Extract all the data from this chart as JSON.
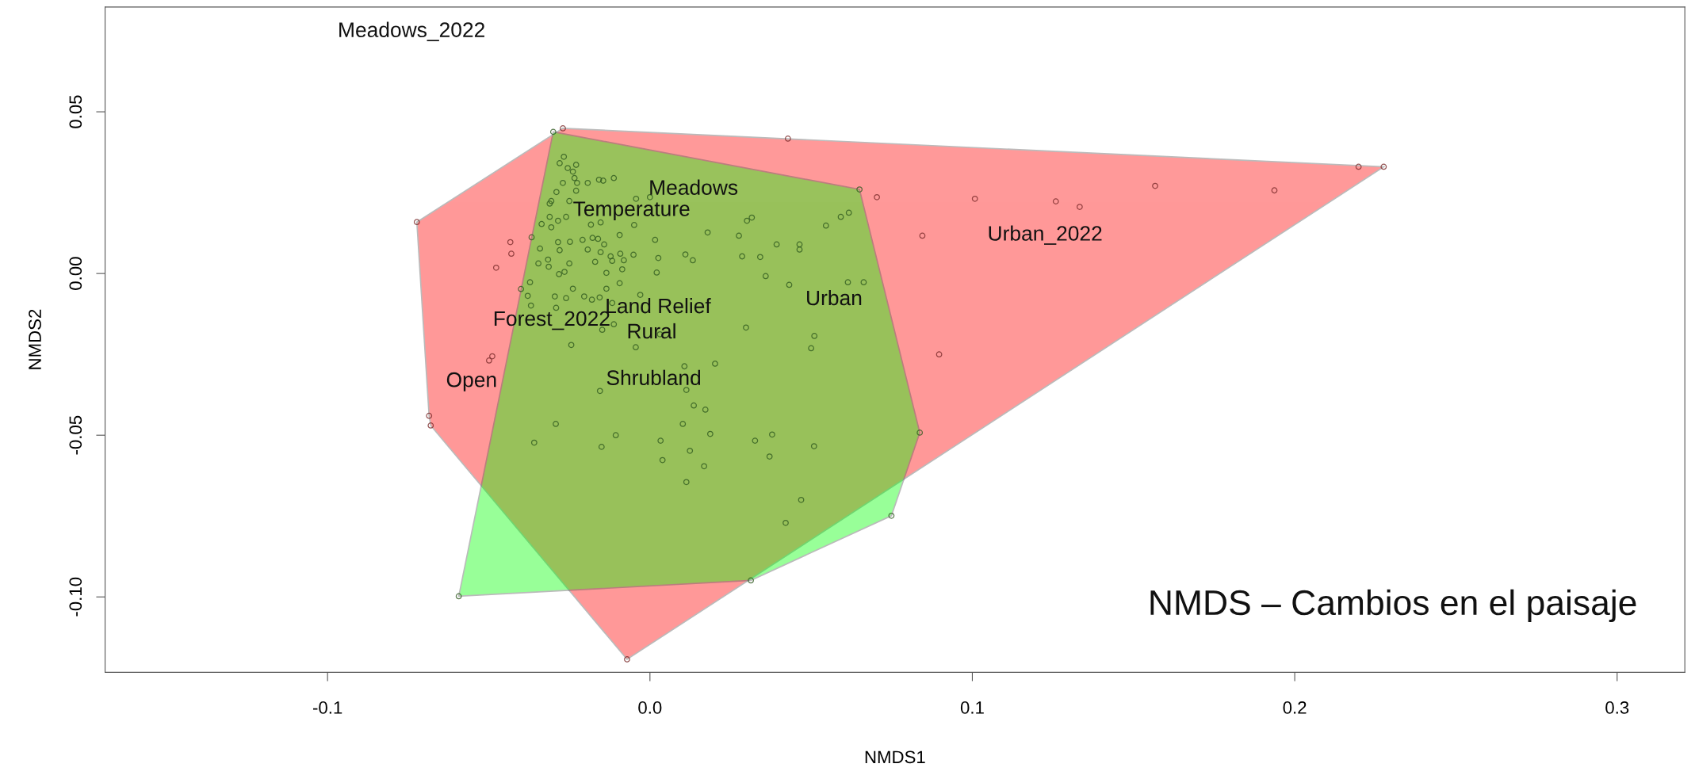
{
  "chart_data": {
    "type": "scatter",
    "xlabel": "NMDS1",
    "ylabel": "NMDS2",
    "xlim": [
      -0.169,
      0.321
    ],
    "ylim": [
      -0.1233,
      0.0824
    ],
    "xticks": [
      -0.1,
      {
        "value": 0,
        "label": "0.0"
      },
      0.1,
      0.2,
      0.3
    ],
    "yticks": [
      {
        "value": -0.1,
        "label": "-0.10"
      },
      -0.05,
      {
        "value": 0,
        "label": "0.00"
      },
      0.05
    ],
    "grid": false,
    "legend": false,
    "series": [
      {
        "type": "area",
        "color": "#ff0000",
        "x": [
          -0.0723,
          -0.027,
          0.2276,
          -0.0071,
          -0.068,
          -0.0685
        ],
        "values": [
          0.0159,
          0.0449,
          0.033,
          -0.1193,
          -0.047,
          -0.044
        ]
      },
      {
        "type": "area",
        "color": "#00ff00",
        "x": [
          -0.03,
          0.065,
          0.0837,
          0.0749,
          0.0313,
          -0.0593
        ],
        "values": [
          0.0438,
          0.026,
          -0.0492,
          -0.0749,
          -0.0949,
          -0.0998
        ]
      },
      {
        "marker": "circle",
        "color": "#2f5a1f",
        "x": [
          -0.0267,
          -0.028,
          -0.0255,
          -0.0229,
          -0.0239,
          -0.0234,
          -0.0226,
          -0.027,
          -0.0193,
          -0.0158,
          -0.0145,
          -0.0112,
          -0.029,
          -0.0229,
          -0.0306,
          -0.0311,
          -0.025,
          -0.0043,
          0.0,
          -0.0311,
          -0.026,
          -0.0285,
          -0.0336,
          -0.0306,
          -0.0183,
          -0.0153,
          -0.0049,
          0.0316,
          0.0301,
          0.0592,
          0.0617,
          0.0546,
          -0.0367,
          -0.0285,
          -0.0248,
          -0.0209,
          -0.0178,
          -0.0161,
          -0.0142,
          -0.0094,
          0.0016,
          0.0179,
          0.0276,
          -0.028,
          -0.0193,
          -0.0153,
          -0.0122,
          -0.0092,
          -0.0051,
          0.0026,
          0.011,
          0.0133,
          0.0286,
          0.0342,
          0.0393,
          0.0464,
          0.0464,
          -0.0341,
          -0.0346,
          -0.0316,
          -0.0314,
          -0.025,
          -0.017,
          -0.0117,
          -0.0081,
          -0.0282,
          -0.0265,
          -0.0135,
          -0.0086,
          0.0021,
          0.0359,
          0.0432,
          0.0614,
          0.0663,
          -0.0372,
          -0.04,
          -0.0379,
          -0.0295,
          -0.026,
          -0.0239,
          -0.0204,
          -0.018,
          -0.0156,
          -0.0135,
          -0.0094,
          -0.003,
          -0.0369,
          -0.0291,
          -0.0117,
          -0.0112,
          -0.0148,
          -0.0244,
          -0.0044,
          0.0031,
          0.0298,
          0.051,
          0.05,
          0.0107,
          0.0202,
          -0.0155,
          0.0113,
          0.0136,
          0.0172,
          -0.0292,
          0.0102,
          -0.0359,
          -0.0106,
          -0.015,
          0.0033,
          0.0187,
          0.0124,
          0.0039,
          0.0168,
          0.0326,
          0.0379,
          0.0371,
          0.0509,
          0.0113,
          0.0469,
          0.0421,
          -0.03,
          0.065,
          0.0837,
          0.0749,
          0.0313,
          -0.0593
        ],
        "values": [
          0.0361,
          0.0341,
          0.0326,
          0.0336,
          0.0315,
          0.0295,
          0.028,
          0.028,
          0.028,
          0.029,
          0.0287,
          0.0295,
          0.0252,
          0.0256,
          0.0224,
          0.0216,
          0.0224,
          0.0231,
          0.0236,
          0.0175,
          0.0175,
          0.0163,
          0.0153,
          0.0143,
          0.0151,
          0.0158,
          0.015,
          0.0173,
          0.0163,
          0.0175,
          0.0188,
          0.0148,
          0.0112,
          0.0097,
          0.0098,
          0.0104,
          0.011,
          0.0107,
          0.009,
          0.0119,
          0.0104,
          0.0127,
          0.0117,
          0.0072,
          0.0074,
          0.0066,
          0.0053,
          0.0061,
          0.0058,
          0.0048,
          0.0059,
          0.0041,
          0.0053,
          0.0051,
          0.009,
          0.009,
          0.0074,
          0.0077,
          0.0031,
          0.0043,
          0.0021,
          0.0031,
          0.0036,
          0.0039,
          0.0041,
          -0.0002,
          0.0005,
          0.0002,
          0.0013,
          0.0003,
          -0.0008,
          -0.0035,
          -0.0027,
          -0.0027,
          -0.0027,
          -0.0048,
          -0.0069,
          -0.0071,
          -0.0076,
          -0.0047,
          -0.0071,
          -0.0081,
          -0.0074,
          -0.0047,
          -0.003,
          -0.0066,
          -0.0099,
          -0.0106,
          -0.0091,
          -0.0157,
          -0.0174,
          -0.0221,
          -0.0228,
          -0.0188,
          -0.0167,
          -0.0193,
          -0.0231,
          -0.0287,
          -0.0279,
          -0.0363,
          -0.036,
          -0.0408,
          -0.0421,
          -0.0465,
          -0.0465,
          -0.0523,
          -0.05,
          -0.0536,
          -0.0517,
          -0.0496,
          -0.0548,
          -0.0577,
          -0.0596,
          -0.0517,
          -0.0498,
          -0.0566,
          -0.0534,
          -0.0645,
          -0.07,
          -0.0771,
          0.0438,
          0.026,
          -0.0492,
          -0.0749,
          -0.0949,
          -0.0998
        ]
      },
      {
        "marker": "circle",
        "color": "#7a2a2a",
        "x": [
          -0.0433,
          -0.043,
          -0.0477,
          -0.0489,
          -0.0499,
          0.0704,
          0.1008,
          0.1259,
          0.1333,
          0.1567,
          0.1937,
          0.2198,
          0.0845,
          0.0897,
          0.0428,
          -0.0723,
          -0.027,
          0.2276,
          -0.0071,
          -0.068,
          -0.0685
        ],
        "values": [
          0.0097,
          0.0061,
          0.0018,
          -0.0256,
          -0.0269,
          0.0236,
          0.0231,
          0.0223,
          0.0206,
          0.0271,
          0.0257,
          0.033,
          0.0117,
          -0.025,
          0.0417,
          0.0159,
          0.0449,
          0.033,
          -0.1193,
          -0.047,
          -0.044
        ]
      }
    ],
    "annotations": [
      "Meadows_2022",
      "Meadows",
      "Temperature",
      "Urban_2022",
      "Urban",
      "Land Relief",
      "Rural",
      "Forest_2022",
      "Shrubland",
      "Open",
      "NMDS – Cambios en el paisaje"
    ]
  }
}
